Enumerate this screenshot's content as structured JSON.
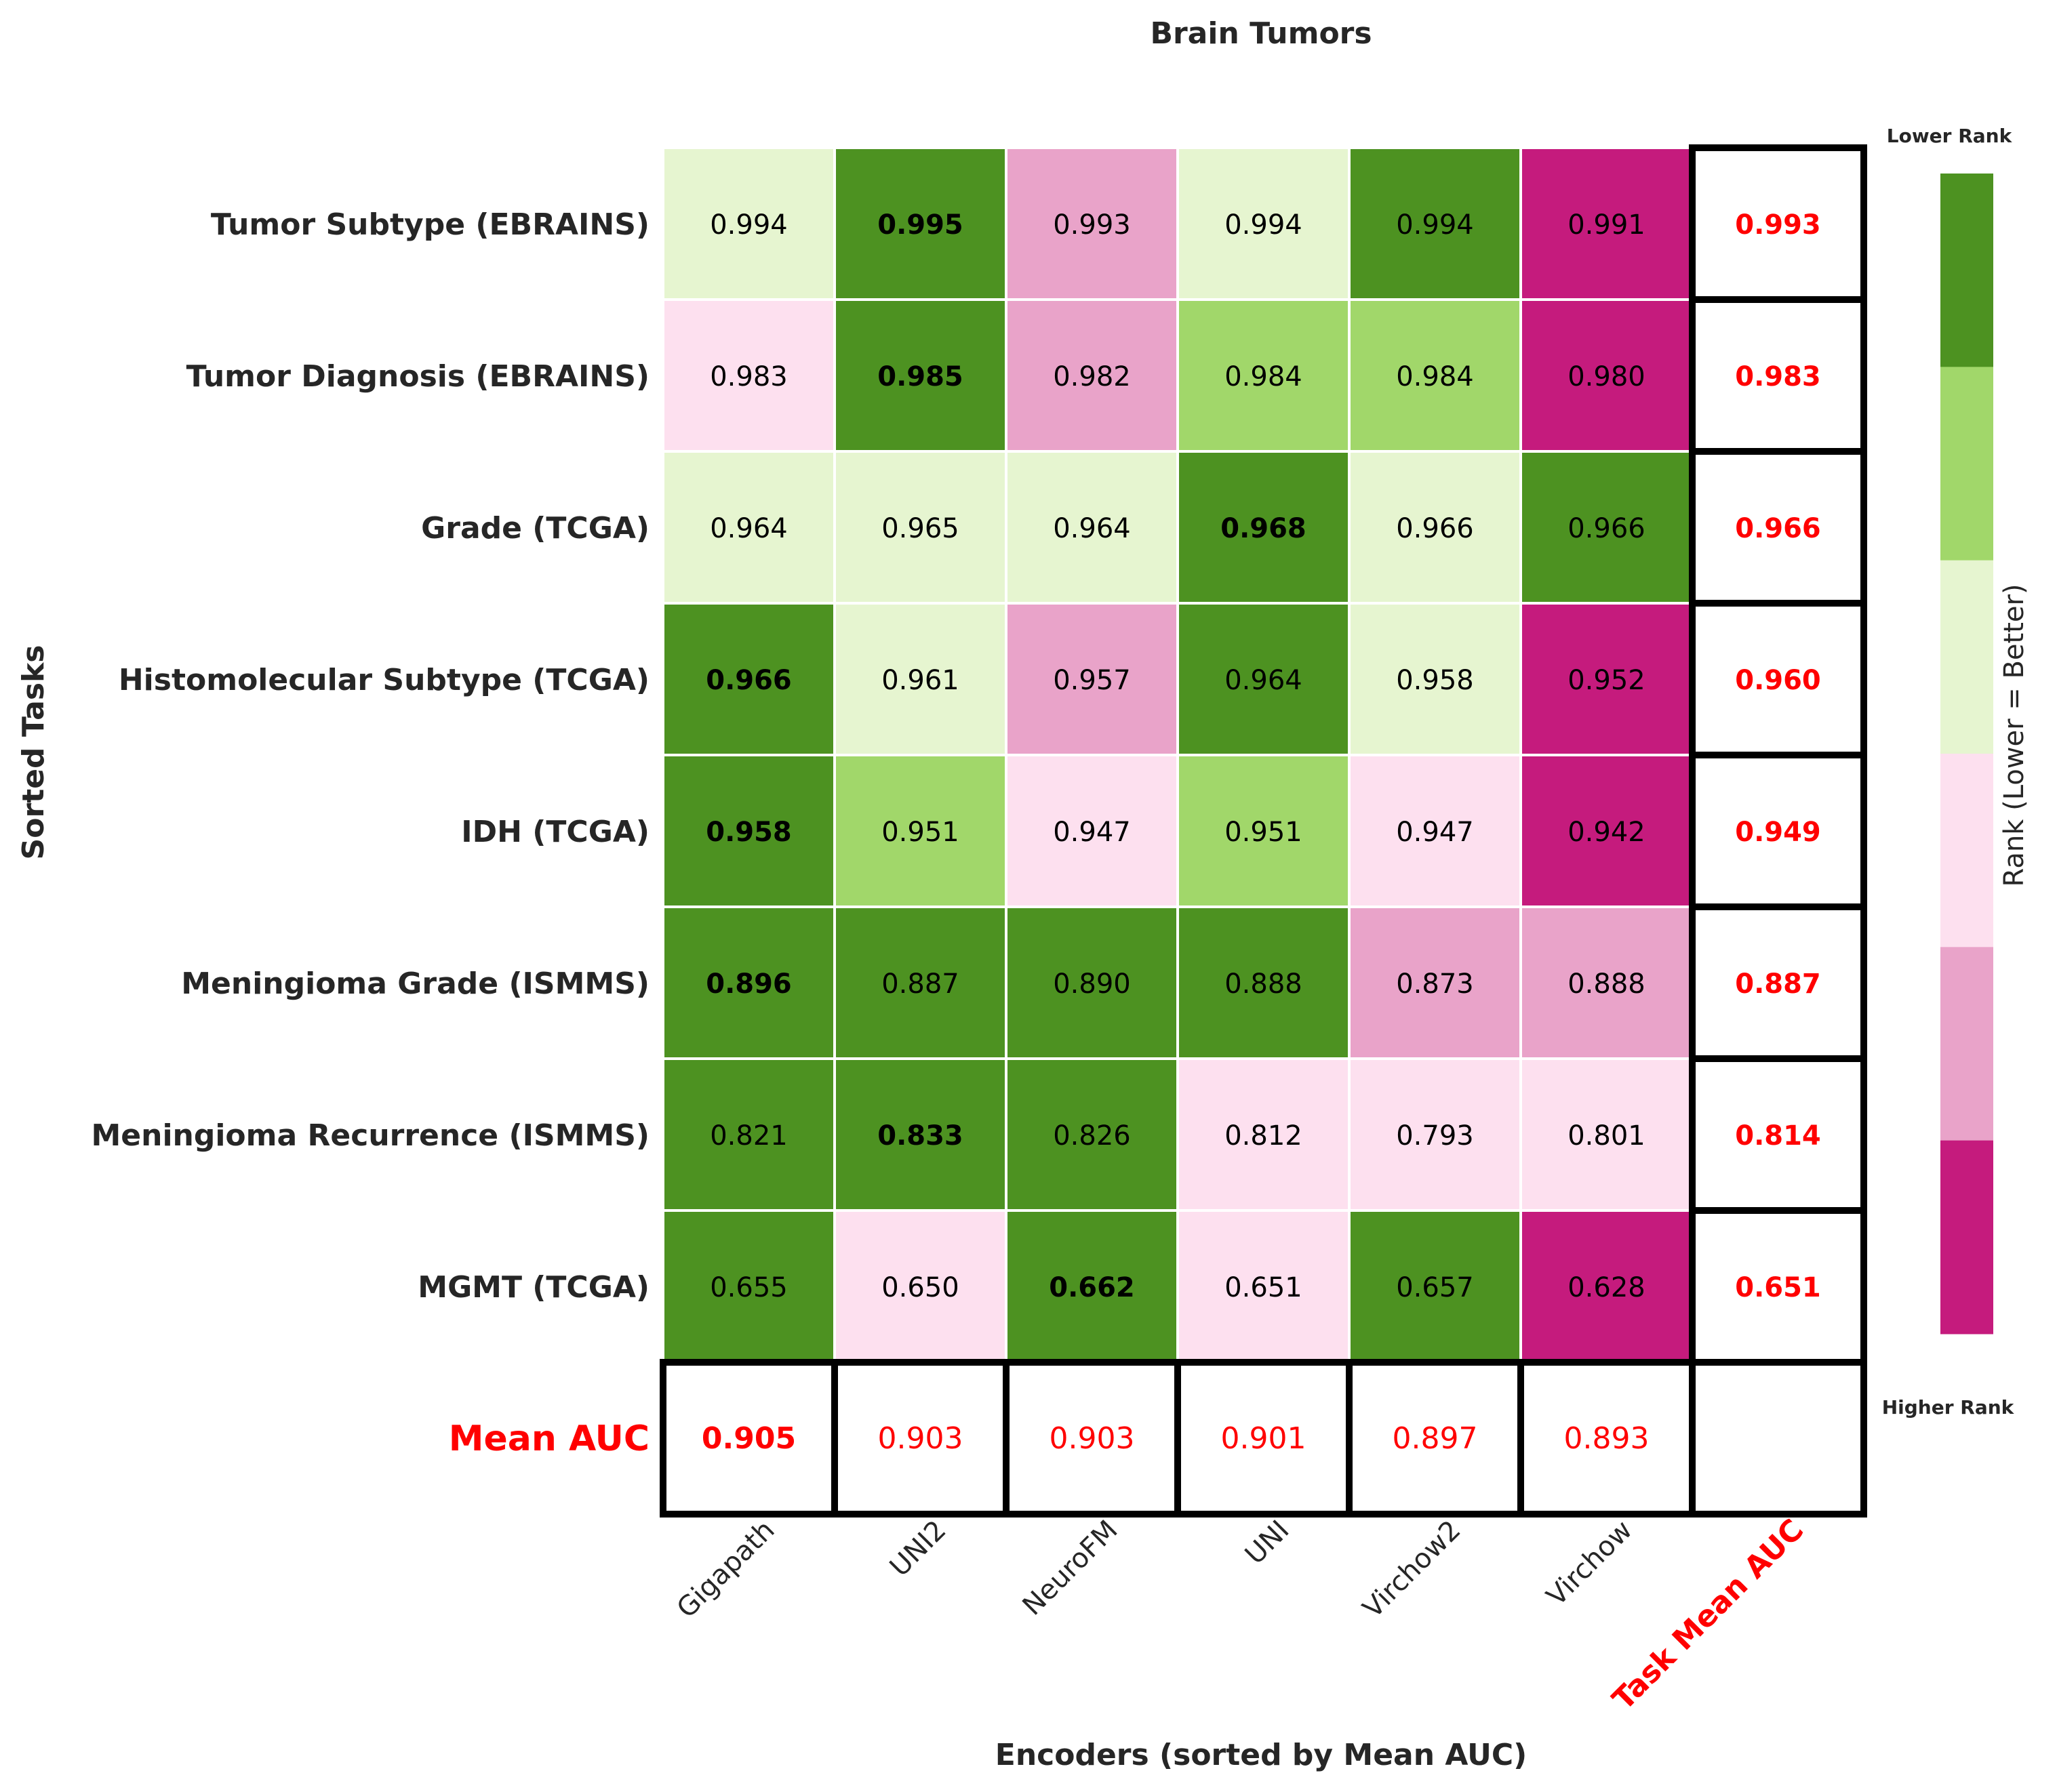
{
  "chart_data": {
    "type": "heatmap",
    "title": "Brain Tumors",
    "xlabel": "Encoders (sorted by Mean AUC)",
    "ylabel": "Sorted Tasks",
    "columns": [
      "Gigapath",
      "UNI2",
      "NeuroFM",
      "UNI",
      "Virchow2",
      "Virchow"
    ],
    "mean_column_label": "Task Mean AUC",
    "mean_row_label": "Mean AUC",
    "rows": [
      {
        "task": "Tumor Subtype (EBRAINS)",
        "values": [
          "0.994",
          "0.995",
          "0.993",
          "0.994",
          "0.994",
          "0.991"
        ],
        "ranks": [
          3,
          1,
          5,
          3,
          1,
          6
        ],
        "best": 1,
        "mean": "0.993"
      },
      {
        "task": "Tumor Diagnosis (EBRAINS)",
        "values": [
          "0.983",
          "0.985",
          "0.982",
          "0.984",
          "0.984",
          "0.980"
        ],
        "ranks": [
          4,
          1,
          5,
          2,
          2,
          6
        ],
        "best": 1,
        "mean": "0.983"
      },
      {
        "task": "Grade (TCGA)",
        "values": [
          "0.964",
          "0.965",
          "0.964",
          "0.968",
          "0.966",
          "0.966"
        ],
        "ranks": [
          3,
          3,
          3,
          1,
          3,
          1
        ],
        "best": 3,
        "mean": "0.966"
      },
      {
        "task": "Histomolecular Subtype (TCGA)",
        "values": [
          "0.966",
          "0.961",
          "0.957",
          "0.964",
          "0.958",
          "0.952"
        ],
        "ranks": [
          1,
          3,
          5,
          1,
          3,
          6
        ],
        "best": 0,
        "mean": "0.960"
      },
      {
        "task": "IDH (TCGA)",
        "values": [
          "0.958",
          "0.951",
          "0.947",
          "0.951",
          "0.947",
          "0.942"
        ],
        "ranks": [
          1,
          2,
          4,
          2,
          4,
          6
        ],
        "best": 0,
        "mean": "0.949"
      },
      {
        "task": "Meningioma Grade (ISMMS)",
        "values": [
          "0.896",
          "0.887",
          "0.890",
          "0.888",
          "0.873",
          "0.888"
        ],
        "ranks": [
          1,
          1,
          1,
          1,
          5,
          5
        ],
        "best": 0,
        "mean": "0.887"
      },
      {
        "task": "Meningioma Recurrence (ISMMS)",
        "values": [
          "0.821",
          "0.833",
          "0.826",
          "0.812",
          "0.793",
          "0.801"
        ],
        "ranks": [
          1,
          1,
          1,
          4,
          4,
          4
        ],
        "best": 1,
        "mean": "0.814"
      },
      {
        "task": "MGMT (TCGA)",
        "values": [
          "0.655",
          "0.650",
          "0.662",
          "0.651",
          "0.657",
          "0.628"
        ],
        "ranks": [
          1,
          4,
          1,
          4,
          1,
          6
        ],
        "best": 2,
        "mean": "0.651"
      }
    ],
    "mean_row": [
      "0.905",
      "0.903",
      "0.903",
      "0.901",
      "0.897",
      "0.893"
    ],
    "mean_row_best": 0,
    "colorbar": {
      "label": "Rank (Lower = Better)",
      "top_label": "Lower Rank",
      "bottom_label": "Higher Rank",
      "colors": [
        "#4d9221",
        "#a1d76a",
        "#e6f5d0",
        "#fde0ef",
        "#e9a3c9",
        "#c51b7d"
      ]
    },
    "accent_color": "#ff0000",
    "text_color": "#262626"
  }
}
